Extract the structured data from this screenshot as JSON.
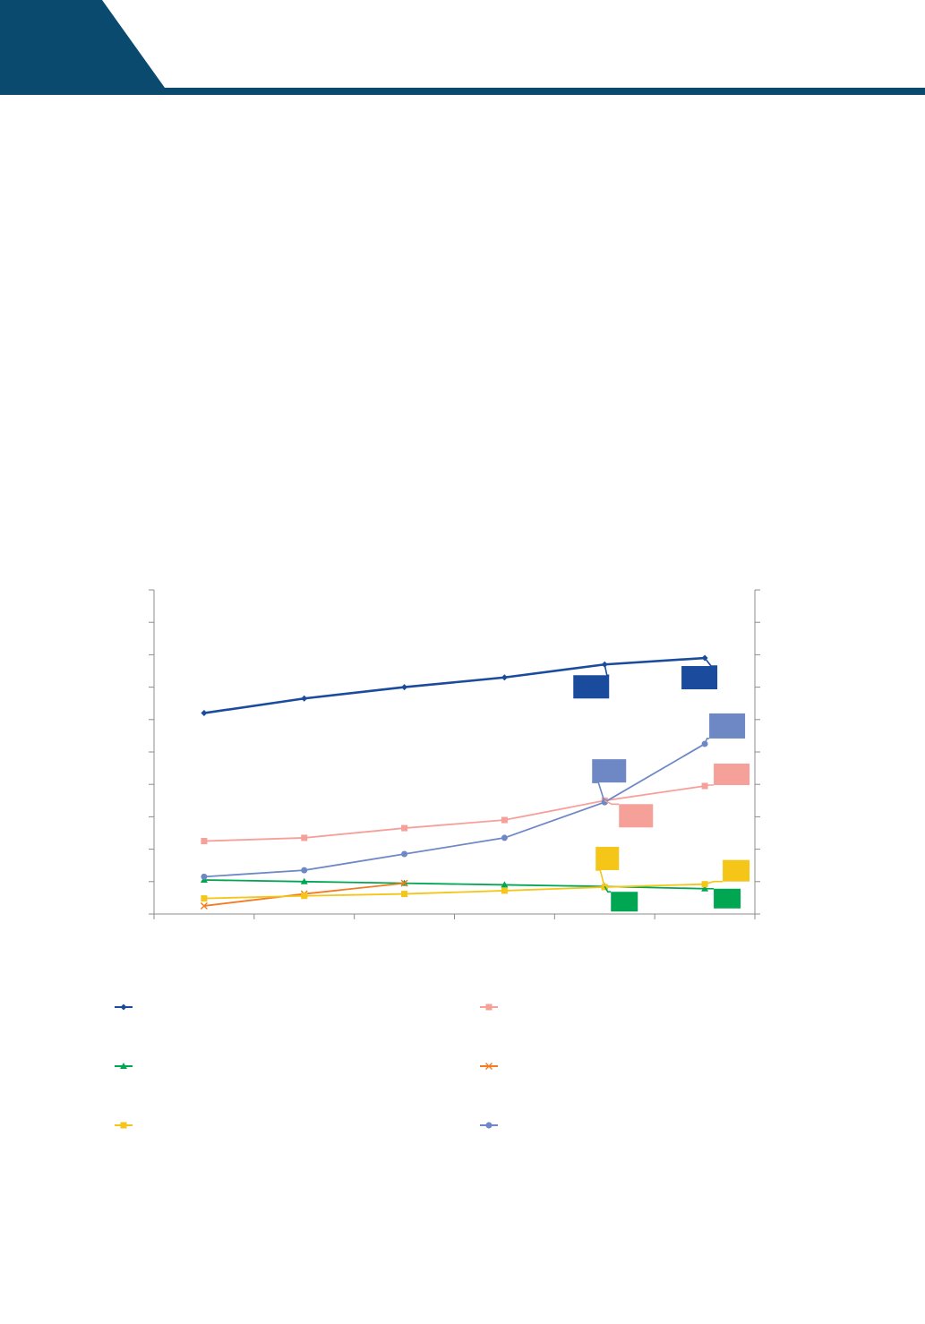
{
  "colors": {
    "header_band": "#0a4a6e",
    "axis": "#8c8c8c"
  },
  "chart_data": {
    "type": "line",
    "title": "",
    "xlabel": "",
    "ylabel": "",
    "x": [
      1,
      2,
      3,
      4,
      5,
      6
    ],
    "xlim": [
      0.5,
      6.5
    ],
    "ylim": [
      0,
      10
    ],
    "grid": false,
    "legend_placement": "bottom",
    "series": [
      {
        "color": "#1a4b9c",
        "marker": "diamond",
        "legend_icon": "diamond-marker-icon",
        "values": [
          6.2,
          6.65,
          7.0,
          7.3,
          7.7,
          7.9
        ]
      },
      {
        "color": "#f6a09a",
        "marker": "square",
        "legend_icon": "square-marker-icon",
        "values": [
          2.25,
          2.35,
          2.65,
          2.9,
          3.5,
          3.95
        ]
      },
      {
        "color": "#00a651",
        "marker": "triangle",
        "legend_icon": "triangle-marker-icon",
        "values": [
          1.05,
          1.0,
          0.95,
          0.9,
          0.85,
          0.78
        ]
      },
      {
        "color": "#f47b20",
        "marker": "cross",
        "legend_icon": "cross-marker-icon",
        "values": [
          0.25,
          0.62,
          0.95,
          null,
          null,
          null
        ]
      },
      {
        "color": "#f5c518",
        "marker": "square",
        "legend_icon": "square-marker-icon",
        "values": [
          0.48,
          0.56,
          0.62,
          0.72,
          0.83,
          0.92
        ]
      },
      {
        "color": "#6e88c6",
        "marker": "circle",
        "legend_icon": "circle-marker-icon",
        "values": [
          1.15,
          1.35,
          1.85,
          2.35,
          3.45,
          5.25
        ]
      }
    ],
    "callouts": [
      {
        "series": 0,
        "point": 4,
        "label": ""
      },
      {
        "series": 0,
        "point": 5,
        "label": ""
      },
      {
        "series": 5,
        "point": 4,
        "label": ""
      },
      {
        "series": 5,
        "point": 5,
        "label": ""
      },
      {
        "series": 1,
        "point": 4,
        "label": ""
      },
      {
        "series": 1,
        "point": 5,
        "label": ""
      },
      {
        "series": 4,
        "point": 4,
        "label": ""
      },
      {
        "series": 4,
        "point": 5,
        "label": ""
      },
      {
        "series": 2,
        "point": 4,
        "label": ""
      },
      {
        "series": 2,
        "point": 5,
        "label": ""
      }
    ]
  }
}
